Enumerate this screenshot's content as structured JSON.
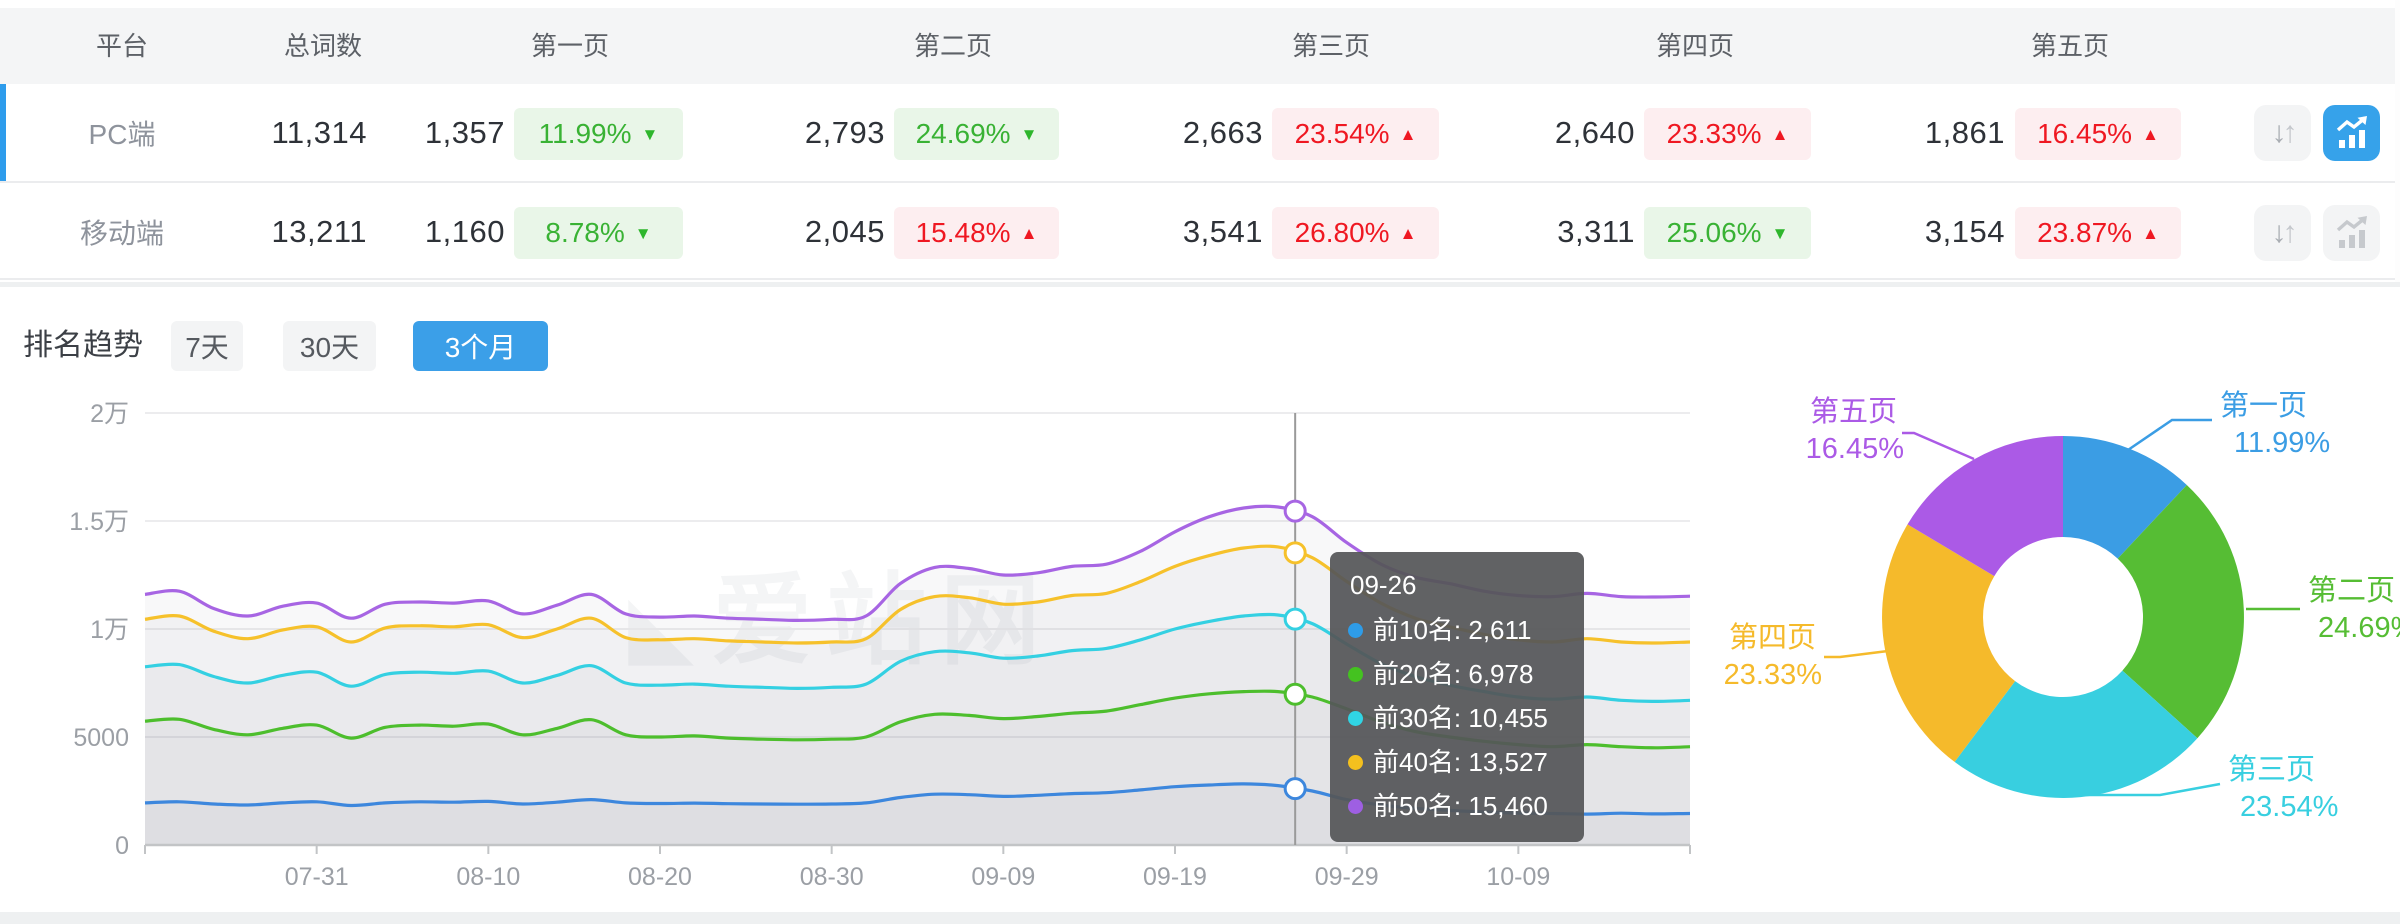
{
  "table": {
    "columns": [
      "平台",
      "总词数",
      "第一页",
      "第二页",
      "第三页",
      "第四页",
      "第五页"
    ],
    "rows": [
      {
        "platform": "PC端",
        "total": "11,314",
        "active": true,
        "pages": [
          {
            "count": "1,357",
            "pct": "11.99%",
            "arrow": "▼",
            "tone": "green"
          },
          {
            "count": "2,793",
            "pct": "24.69%",
            "arrow": "▼",
            "tone": "green"
          },
          {
            "count": "2,663",
            "pct": "23.54%",
            "arrow": "▲",
            "tone": "red"
          },
          {
            "count": "2,640",
            "pct": "23.33%",
            "arrow": "▲",
            "tone": "red"
          },
          {
            "count": "1,861",
            "pct": "16.45%",
            "arrow": "▲",
            "tone": "red"
          }
        ]
      },
      {
        "platform": "移动端",
        "total": "13,211",
        "active": false,
        "pages": [
          {
            "count": "1,160",
            "pct": "8.78%",
            "arrow": "▼",
            "tone": "green"
          },
          {
            "count": "2,045",
            "pct": "15.48%",
            "arrow": "▲",
            "tone": "red"
          },
          {
            "count": "3,541",
            "pct": "26.80%",
            "arrow": "▲",
            "tone": "red"
          },
          {
            "count": "3,311",
            "pct": "25.06%",
            "arrow": "▼",
            "tone": "green"
          },
          {
            "count": "3,154",
            "pct": "23.87%",
            "arrow": "▲",
            "tone": "red"
          }
        ]
      }
    ]
  },
  "trend": {
    "title": "排名趋势",
    "tabs": [
      {
        "label": "7天",
        "active": false
      },
      {
        "label": "30天",
        "active": false
      },
      {
        "label": "3个月",
        "active": true
      }
    ]
  },
  "watermark": {
    "logo": "◣",
    "text": "爱站网"
  },
  "tooltip": {
    "title": "09-26",
    "rows": [
      {
        "text": "前10名: 2,611",
        "num": 2611,
        "color": "#2e9ce8"
      },
      {
        "text": "前20名: 6,978",
        "num": 6978,
        "color": "#44c220"
      },
      {
        "text": "前30名: 10,455",
        "num": 10455,
        "color": "#30d5e5"
      },
      {
        "text": "前40名: 13,527",
        "num": 13527,
        "color": "#f4c01e"
      },
      {
        "text": "前50名: 15,460",
        "num": 15460,
        "color": "#9e5fe2"
      }
    ]
  },
  "chart_data": [
    {
      "type": "line",
      "title": "排名趋势 (3个月)",
      "ylim": [
        0,
        20000
      ],
      "grid": true,
      "x_step_days": 2,
      "crosshair_day": 67,
      "crosshair_label": "09-26",
      "y_ticks": [
        {
          "label": "0",
          "value": 0
        },
        {
          "label": "5000",
          "value": 5000
        },
        {
          "label": "1万",
          "value": 10000
        },
        {
          "label": "1.5万",
          "value": 15000
        },
        {
          "label": "2万",
          "value": 20000
        }
      ],
      "x_ticks": [
        {
          "label": "07-31",
          "day": 10
        },
        {
          "label": "08-10",
          "day": 20
        },
        {
          "label": "08-20",
          "day": 30
        },
        {
          "label": "08-30",
          "day": 40
        },
        {
          "label": "09-09",
          "day": 50
        },
        {
          "label": "09-19",
          "day": 60
        },
        {
          "label": "09-29",
          "day": 70
        },
        {
          "label": "10-09",
          "day": 80
        }
      ],
      "series": [
        {
          "name": "前10名",
          "color": "#3d87dd",
          "values": [
            1950,
            2000,
            1900,
            1850,
            1950,
            2000,
            1830,
            1950,
            2000,
            1980,
            2020,
            1900,
            1980,
            2100,
            1950,
            1920,
            1940,
            1910,
            1900,
            1890,
            1900,
            1950,
            2200,
            2350,
            2330,
            2250,
            2300,
            2380,
            2420,
            2550,
            2700,
            2780,
            2830,
            2750,
            2500,
            2100,
            1850,
            1700,
            1600,
            1530,
            1480,
            1460,
            1430,
            1470,
            1440,
            1460
          ]
        },
        {
          "name": "前20名",
          "color": "#4dbe2d",
          "values": [
            5730,
            5820,
            5350,
            5100,
            5400,
            5550,
            4950,
            5450,
            5550,
            5500,
            5600,
            5100,
            5400,
            5800,
            5100,
            5000,
            5050,
            4950,
            4900,
            4870,
            4900,
            5000,
            5700,
            6050,
            6000,
            5850,
            5950,
            6100,
            6200,
            6500,
            6800,
            7000,
            7100,
            7100,
            6850,
            6300,
            5700,
            5250,
            5000,
            4800,
            4650,
            4550,
            4650,
            4550,
            4500,
            4550
          ]
        },
        {
          "name": "前30名",
          "color": "#34d0e2",
          "values": [
            8250,
            8350,
            7800,
            7500,
            7850,
            8000,
            7350,
            7900,
            8000,
            7950,
            8050,
            7500,
            7850,
            8300,
            7500,
            7400,
            7450,
            7350,
            7300,
            7250,
            7300,
            7450,
            8500,
            8950,
            8900,
            8650,
            8750,
            9000,
            9100,
            9500,
            10000,
            10350,
            10600,
            10650,
            10250,
            9300,
            8400,
            7800,
            7400,
            7100,
            6850,
            6750,
            6850,
            6700,
            6650,
            6700
          ]
        },
        {
          "name": "前40名",
          "color": "#f6c12b",
          "values": [
            10450,
            10600,
            9900,
            9550,
            9950,
            10100,
            9400,
            10050,
            10150,
            10100,
            10200,
            9600,
            10000,
            10500,
            9600,
            9500,
            9550,
            9450,
            9400,
            9350,
            9400,
            9550,
            10900,
            11500,
            11450,
            11150,
            11250,
            11550,
            11650,
            12200,
            12900,
            13400,
            13750,
            13800,
            13300,
            12200,
            11200,
            10500,
            10100,
            9750,
            9500,
            9400,
            9550,
            9400,
            9350,
            9400
          ]
        },
        {
          "name": "前50名",
          "color": "#a765e3",
          "values": [
            11600,
            11750,
            10950,
            10600,
            11050,
            11200,
            10500,
            11150,
            11250,
            11200,
            11300,
            10700,
            11100,
            11600,
            10700,
            10550,
            10600,
            10500,
            10450,
            10400,
            10450,
            10600,
            12100,
            12850,
            12800,
            12500,
            12600,
            12900,
            13000,
            13600,
            14500,
            15200,
            15600,
            15650,
            15200,
            14000,
            13000,
            12400,
            12100,
            11750,
            11550,
            11500,
            11650,
            11500,
            11480,
            11520
          ]
        }
      ]
    },
    {
      "type": "donut",
      "slices": [
        {
          "label": "第一页",
          "value": 11.99,
          "pct_label": "11.99%",
          "color": "#3b9de4"
        },
        {
          "label": "第二页",
          "value": 24.69,
          "pct_label": "24.69%",
          "color": "#56bd34"
        },
        {
          "label": "第三页",
          "value": 23.54,
          "pct_label": "23.54%",
          "color": "#38cfe0"
        },
        {
          "label": "第四页",
          "value": 23.33,
          "pct_label": "23.33%",
          "color": "#f5ba2b"
        },
        {
          "label": "第五页",
          "value": 16.45,
          "pct_label": "16.45%",
          "color": "#ab5ae6"
        }
      ]
    }
  ],
  "colors": {
    "accent_blue": "#2e9cec",
    "badge_green_bg": "#e9f6e8",
    "badge_green_text": "#39b234",
    "badge_red_bg": "#fdeef0",
    "badge_red_text": "#ef1822",
    "header_bg": "#f4f5f6"
  }
}
